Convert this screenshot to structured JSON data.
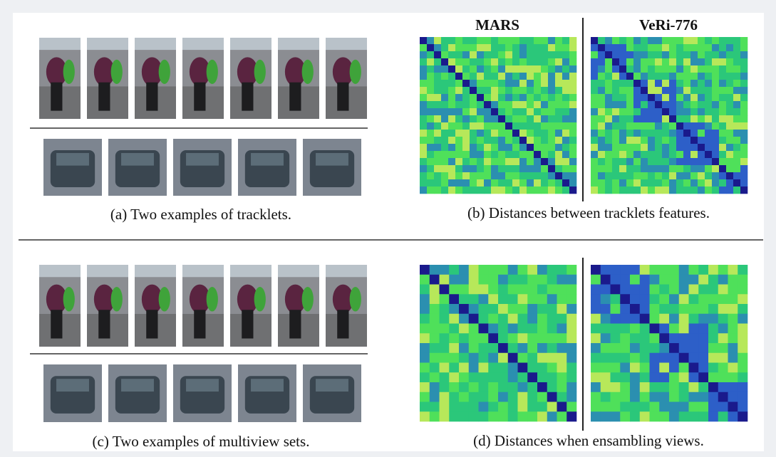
{
  "headers": [
    "MARS",
    "VeRi-776"
  ],
  "captions": [
    "(a) Two examples of tracklets.",
    "(b) Distances between tracklets features.",
    "(c) Two examples of multiview sets.",
    "(d) Distances when ensambling views."
  ]
}
